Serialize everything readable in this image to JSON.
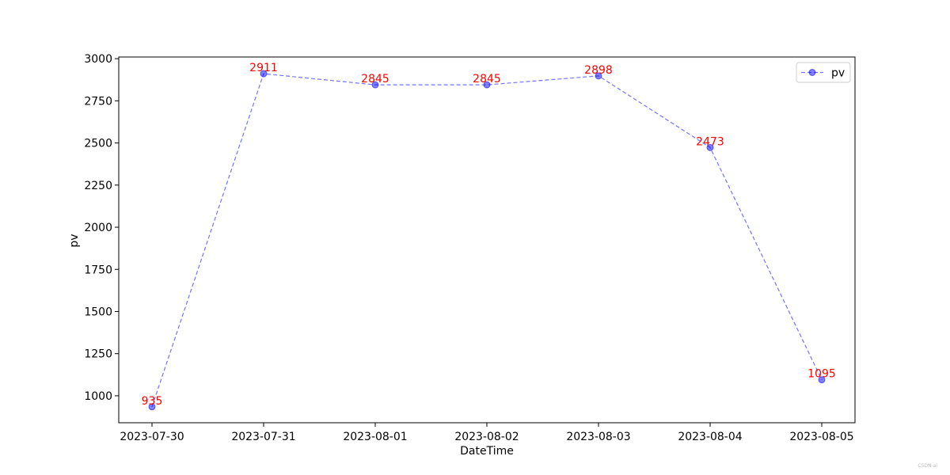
{
  "chart_data": {
    "type": "line",
    "title": "",
    "xlabel": "DateTime",
    "ylabel": "pv",
    "categories": [
      "2023-07-30",
      "2023-07-31",
      "2023-08-01",
      "2023-08-02",
      "2023-08-03",
      "2023-08-04",
      "2023-08-05"
    ],
    "series": [
      {
        "name": "pv",
        "values": [
          935,
          2911,
          2845,
          2845,
          2898,
          2473,
          1095
        ],
        "color": "#0000ff",
        "line_style": "dashed",
        "marker": "circle"
      }
    ],
    "ylim": [
      840,
      3010
    ],
    "yticks": [
      "1000",
      "1250",
      "1500",
      "1750",
      "2000",
      "2250",
      "2500",
      "2750",
      "3000"
    ],
    "data_label_color": "#ff0000",
    "show_data_labels": true,
    "grid": false,
    "legend_position": "top-right"
  },
  "watermark": "CSDN-ai"
}
